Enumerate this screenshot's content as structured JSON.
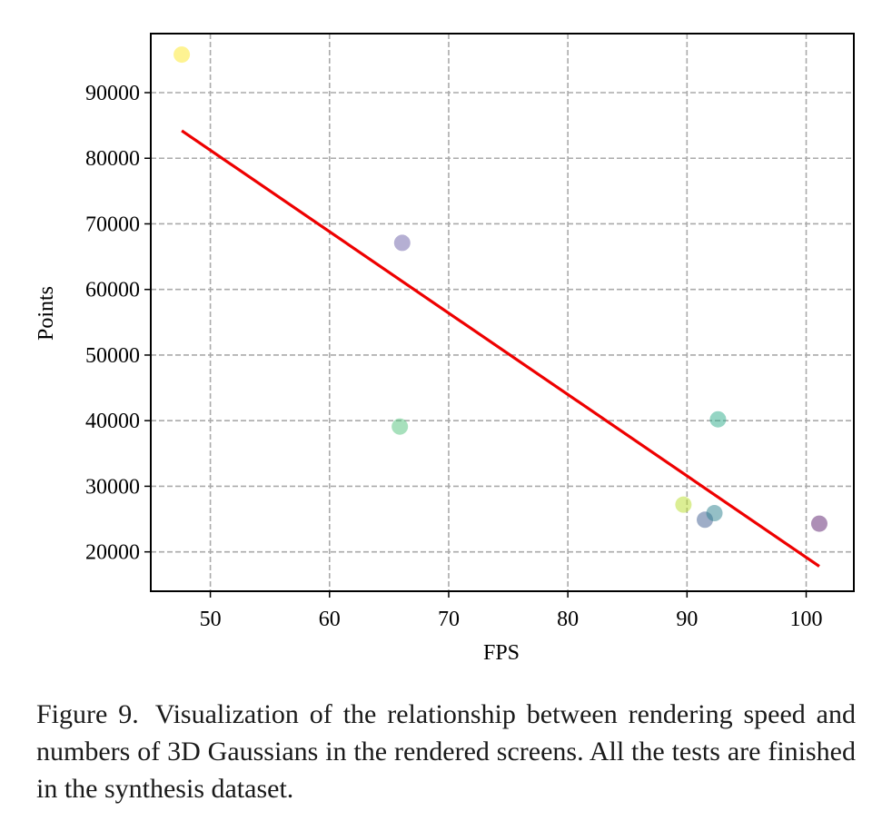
{
  "chart_data": {
    "type": "scatter",
    "title": "",
    "xlabel": "FPS",
    "ylabel": "Points",
    "xlim": [
      45,
      104
    ],
    "ylim": [
      14000,
      99000
    ],
    "xticks": [
      50,
      60,
      70,
      80,
      90,
      100
    ],
    "yticks": [
      20000,
      30000,
      40000,
      50000,
      60000,
      70000,
      80000,
      90000
    ],
    "grid": true,
    "points": [
      {
        "x": 47.6,
        "y": 95800,
        "color": "#fde725"
      },
      {
        "x": 66.1,
        "y": 67100,
        "color": "#6b5fa8"
      },
      {
        "x": 65.9,
        "y": 39100,
        "color": "#4fc17a"
      },
      {
        "x": 92.6,
        "y": 40200,
        "color": "#2bab8a"
      },
      {
        "x": 89.7,
        "y": 27200,
        "color": "#b8de29"
      },
      {
        "x": 91.5,
        "y": 24900,
        "color": "#3e5b8f"
      },
      {
        "x": 92.3,
        "y": 25900,
        "color": "#2a7f8e"
      },
      {
        "x": 101.1,
        "y": 24300,
        "color": "#5b1f6e"
      }
    ],
    "fit_line": {
      "x": [
        47.6,
        101.1
      ],
      "y": [
        84200,
        17800
      ],
      "color": "#ee0000"
    }
  },
  "caption": {
    "label": "Figure 9.",
    "text": "Visualization of the relationship between rendering speed and numbers of 3D Gaussians in the rendered screens. All the tests are finished in the synthesis dataset."
  }
}
